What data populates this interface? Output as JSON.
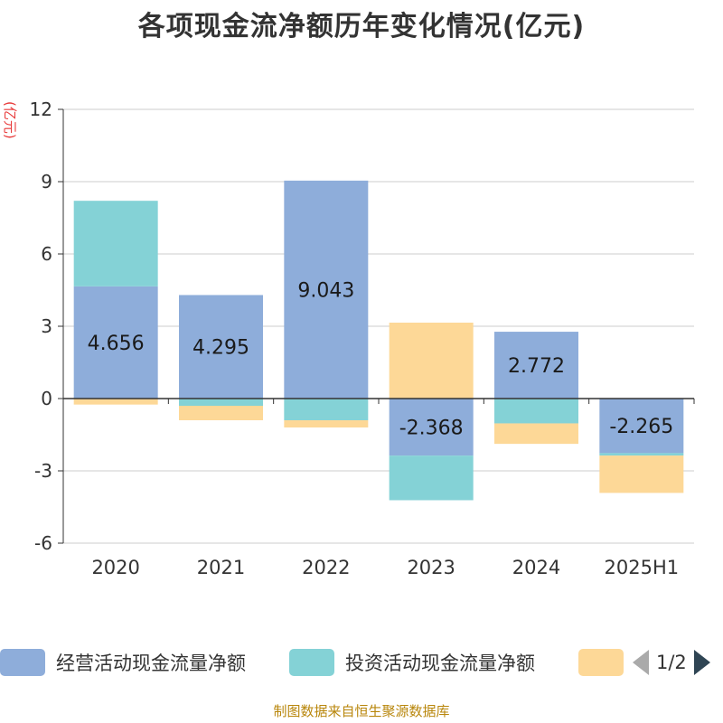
{
  "title": "各项现金流净额历年变化情况(亿元)",
  "unit": "(亿元)",
  "colors": {
    "operating": "#8eadda",
    "investing": "#84d2d6",
    "financing": "#fdd897",
    "unit_label": "#e83b3b",
    "axis": "#333333",
    "grid": "#cccccc",
    "label_text": "#1a1a1a"
  },
  "legend": {
    "items": [
      {
        "label": "经营活动现金流量净额",
        "color_key": "operating"
      },
      {
        "label": "投资活动现金流量净额",
        "color_key": "investing"
      },
      {
        "label": "",
        "color_key": "financing"
      }
    ],
    "page_text": "1/2",
    "prev_icon": "arrow-left-icon",
    "next_icon": "arrow-right-icon"
  },
  "source": "制图数据来自恒生聚源数据库",
  "chart_data": {
    "type": "bar",
    "stacked": true,
    "categories": [
      "2020",
      "2021",
      "2022",
      "2023",
      "2024",
      "2025H1"
    ],
    "ylim": [
      -6,
      12
    ],
    "yticks": [
      -6,
      -3,
      0,
      3,
      6,
      9,
      12
    ],
    "ylabel": "(亿元)",
    "grid": true,
    "legend_position": "bottom",
    "series": [
      {
        "name": "经营活动现金流量净额",
        "color_key": "operating",
        "values": [
          4.656,
          4.295,
          9.043,
          -2.368,
          2.772,
          -2.265
        ],
        "labeled": true
      },
      {
        "name": "投资活动现金流量净额",
        "color_key": "investing",
        "values": [
          3.55,
          -0.3,
          -0.9,
          -1.85,
          -1.03,
          -0.1
        ],
        "labeled": false
      },
      {
        "name": "",
        "color_key": "financing",
        "values": [
          -0.25,
          -0.6,
          -0.3,
          3.15,
          -0.85,
          -1.55
        ],
        "labeled": false
      }
    ],
    "data_labels": [
      "4.656",
      "4.295",
      "9.043",
      "-2.368",
      "2.772",
      "-2.265"
    ]
  }
}
